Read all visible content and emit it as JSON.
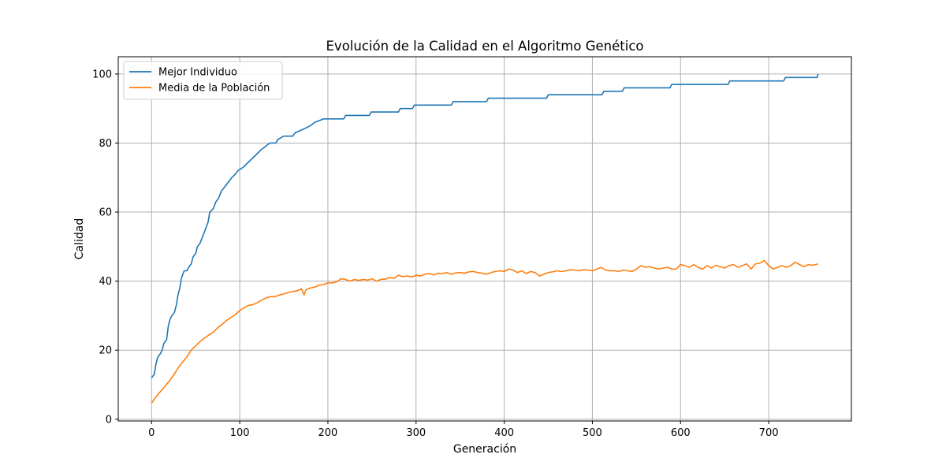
{
  "chart_data": {
    "type": "line",
    "title": "Evolución de la Calidad en el Algoritmo Genético",
    "xlabel": "Generación",
    "ylabel": "Calidad",
    "xlim": [
      -37.8,
      793.8
    ],
    "ylim": [
      -0.5,
      105
    ],
    "xticks": [
      0,
      100,
      200,
      300,
      400,
      500,
      600,
      700
    ],
    "yticks": [
      0,
      20,
      40,
      60,
      80,
      100
    ],
    "grid": true,
    "legend_position": "top-left",
    "series": [
      {
        "name": "Mejor Individuo",
        "color": "#1f77b4",
        "points": [
          [
            0,
            12
          ],
          [
            3,
            13
          ],
          [
            5,
            16
          ],
          [
            7,
            18
          ],
          [
            10,
            19
          ],
          [
            12,
            20
          ],
          [
            14,
            22
          ],
          [
            17,
            23
          ],
          [
            19,
            27
          ],
          [
            21,
            29
          ],
          [
            23,
            30
          ],
          [
            26,
            31
          ],
          [
            28,
            33
          ],
          [
            30,
            36
          ],
          [
            32,
            38
          ],
          [
            34,
            41
          ],
          [
            37,
            43
          ],
          [
            40,
            43
          ],
          [
            42,
            44
          ],
          [
            45,
            45
          ],
          [
            47,
            47
          ],
          [
            50,
            48
          ],
          [
            52,
            50
          ],
          [
            55,
            51
          ],
          [
            58,
            53
          ],
          [
            61,
            55
          ],
          [
            64,
            57
          ],
          [
            66,
            60
          ],
          [
            70,
            61
          ],
          [
            73,
            63
          ],
          [
            76,
            64
          ],
          [
            79,
            66
          ],
          [
            82,
            67
          ],
          [
            85,
            68
          ],
          [
            88,
            69
          ],
          [
            91,
            70
          ],
          [
            95,
            71
          ],
          [
            98,
            72
          ],
          [
            104,
            73
          ],
          [
            108,
            74
          ],
          [
            112,
            75
          ],
          [
            116,
            76
          ],
          [
            120,
            77
          ],
          [
            124,
            78
          ],
          [
            129,
            79
          ],
          [
            134,
            80
          ],
          [
            141,
            80
          ],
          [
            143,
            81
          ],
          [
            150,
            82
          ],
          [
            160,
            82
          ],
          [
            163,
            83
          ],
          [
            172,
            84
          ],
          [
            180,
            85
          ],
          [
            185,
            86
          ],
          [
            195,
            87
          ],
          [
            218,
            87
          ],
          [
            220,
            88
          ],
          [
            247,
            88
          ],
          [
            249,
            89
          ],
          [
            280,
            89
          ],
          [
            282,
            90
          ],
          [
            296,
            90
          ],
          [
            298,
            91
          ],
          [
            340,
            91
          ],
          [
            342,
            92
          ],
          [
            380,
            92
          ],
          [
            382,
            93
          ],
          [
            448,
            93
          ],
          [
            450,
            94
          ],
          [
            511,
            94
          ],
          [
            513,
            95
          ],
          [
            534,
            95
          ],
          [
            536,
            96
          ],
          [
            588,
            96
          ],
          [
            590,
            97
          ],
          [
            654,
            97
          ],
          [
            656,
            98
          ],
          [
            717,
            98
          ],
          [
            719,
            99
          ],
          [
            755,
            99
          ],
          [
            756,
            100
          ]
        ]
      },
      {
        "name": "Media de la Población",
        "color": "#ff7f0e",
        "points": [
          [
            0,
            4.7
          ],
          [
            5,
            6.5
          ],
          [
            10,
            8
          ],
          [
            15,
            9.5
          ],
          [
            20,
            11
          ],
          [
            25,
            12.8
          ],
          [
            30,
            14.8
          ],
          [
            35,
            16.5
          ],
          [
            40,
            18
          ],
          [
            45,
            20
          ],
          [
            50,
            21.3
          ],
          [
            55,
            22.5
          ],
          [
            60,
            23.5
          ],
          [
            65,
            24.4
          ],
          [
            70,
            25.2
          ],
          [
            75,
            26.5
          ],
          [
            80,
            27.5
          ],
          [
            85,
            28.6
          ],
          [
            90,
            29.5
          ],
          [
            95,
            30.3
          ],
          [
            100,
            31.5
          ],
          [
            105,
            32.3
          ],
          [
            110,
            33
          ],
          [
            115,
            33.2
          ],
          [
            120,
            33.8
          ],
          [
            125,
            34.5
          ],
          [
            130,
            35.2
          ],
          [
            135,
            35.5
          ],
          [
            140,
            35.5
          ],
          [
            145,
            36
          ],
          [
            150,
            36.3
          ],
          [
            155,
            36.7
          ],
          [
            160,
            37
          ],
          [
            165,
            37.2
          ],
          [
            170,
            37.8
          ],
          [
            173,
            36
          ],
          [
            175,
            37.5
          ],
          [
            180,
            38
          ],
          [
            185,
            38.3
          ],
          [
            190,
            38.8
          ],
          [
            195,
            39
          ],
          [
            200,
            39.5
          ],
          [
            205,
            39.5
          ],
          [
            210,
            39.8
          ],
          [
            215,
            40.7
          ],
          [
            220,
            40.5
          ],
          [
            225,
            40
          ],
          [
            230,
            40.5
          ],
          [
            235,
            40.2
          ],
          [
            240,
            40.5
          ],
          [
            245,
            40.3
          ],
          [
            250,
            40.7
          ],
          [
            255,
            40
          ],
          [
            260,
            40.5
          ],
          [
            265,
            40.6
          ],
          [
            270,
            41
          ],
          [
            275,
            40.8
          ],
          [
            280,
            41.7
          ],
          [
            285,
            41.3
          ],
          [
            290,
            41.5
          ],
          [
            295,
            41.2
          ],
          [
            300,
            41.7
          ],
          [
            305,
            41.5
          ],
          [
            310,
            42
          ],
          [
            315,
            42.2
          ],
          [
            320,
            41.8
          ],
          [
            325,
            42.3
          ],
          [
            330,
            42.2
          ],
          [
            335,
            42.5
          ],
          [
            340,
            42
          ],
          [
            345,
            42.4
          ],
          [
            350,
            42.5
          ],
          [
            355,
            42.3
          ],
          [
            360,
            42.7
          ],
          [
            365,
            42.8
          ],
          [
            370,
            42.5
          ],
          [
            375,
            42.3
          ],
          [
            380,
            42
          ],
          [
            385,
            42.5
          ],
          [
            390,
            42.8
          ],
          [
            395,
            43
          ],
          [
            400,
            42.8
          ],
          [
            405,
            43.5
          ],
          [
            410,
            43.2
          ],
          [
            415,
            42.5
          ],
          [
            420,
            43
          ],
          [
            425,
            42.2
          ],
          [
            430,
            42.8
          ],
          [
            435,
            42.5
          ],
          [
            440,
            41.5
          ],
          [
            445,
            42
          ],
          [
            450,
            42.5
          ],
          [
            455,
            42.7
          ],
          [
            460,
            43
          ],
          [
            465,
            42.8
          ],
          [
            470,
            43
          ],
          [
            475,
            43.3
          ],
          [
            480,
            43.2
          ],
          [
            485,
            43
          ],
          [
            490,
            43.3
          ],
          [
            495,
            43.2
          ],
          [
            500,
            43
          ],
          [
            505,
            43.5
          ],
          [
            510,
            44
          ],
          [
            515,
            43.2
          ],
          [
            520,
            43
          ],
          [
            525,
            43
          ],
          [
            530,
            42.8
          ],
          [
            535,
            43.2
          ],
          [
            540,
            43
          ],
          [
            545,
            42.8
          ],
          [
            550,
            43.5
          ],
          [
            555,
            44.5
          ],
          [
            560,
            44
          ],
          [
            565,
            44.2
          ],
          [
            570,
            43.8
          ],
          [
            575,
            43.5
          ],
          [
            580,
            43.8
          ],
          [
            585,
            44
          ],
          [
            590,
            43.5
          ],
          [
            595,
            43.5
          ],
          [
            600,
            44.8
          ],
          [
            605,
            44.5
          ],
          [
            610,
            44
          ],
          [
            615,
            44.8
          ],
          [
            620,
            44
          ],
          [
            625,
            43.5
          ],
          [
            630,
            44.5
          ],
          [
            635,
            43.8
          ],
          [
            640,
            44.6
          ],
          [
            645,
            44.2
          ],
          [
            650,
            43.8
          ],
          [
            655,
            44.5
          ],
          [
            660,
            44.8
          ],
          [
            665,
            44
          ],
          [
            670,
            44.5
          ],
          [
            675,
            45
          ],
          [
            680,
            43.5
          ],
          [
            685,
            45
          ],
          [
            690,
            45.2
          ],
          [
            695,
            46
          ],
          [
            700,
            44.5
          ],
          [
            705,
            43.5
          ],
          [
            710,
            44
          ],
          [
            715,
            44.5
          ],
          [
            720,
            44
          ],
          [
            725,
            44.5
          ],
          [
            730,
            45.5
          ],
          [
            735,
            44.8
          ],
          [
            740,
            44.2
          ],
          [
            745,
            44.8
          ],
          [
            750,
            44.6
          ],
          [
            756,
            45
          ]
        ]
      }
    ]
  }
}
